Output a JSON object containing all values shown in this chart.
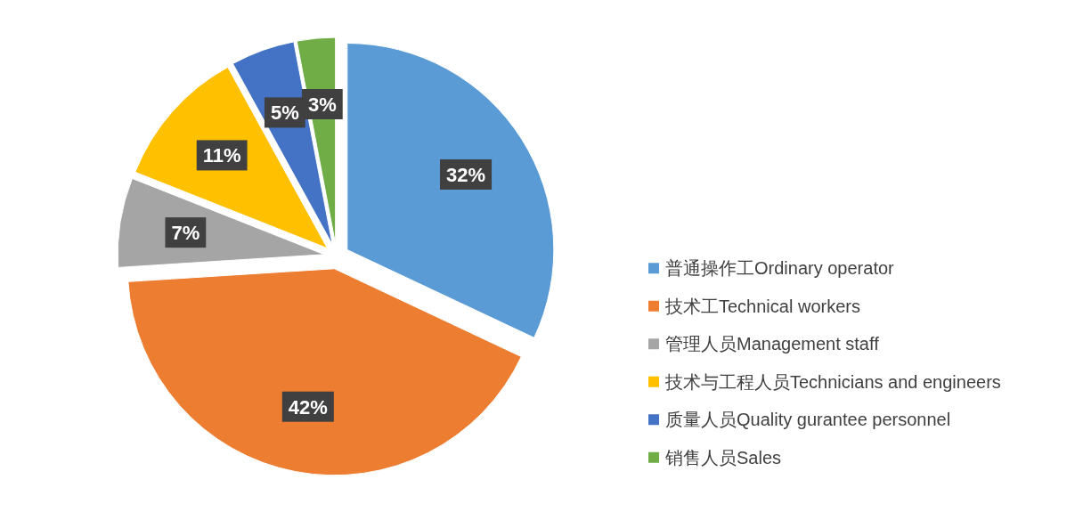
{
  "chart_data": {
    "type": "pie",
    "categories": [
      "普通操作工Ordinary operator",
      "技术工Technical workers",
      "管理人员Management staff",
      "技术与工程人员Technicians and engineers",
      "质量人员Quality gurantee personnel",
      "销售人员Sales"
    ],
    "values": [
      32,
      42,
      7,
      11,
      5,
      3
    ],
    "colors": [
      "#5b9bd5",
      "#ed7d31",
      "#a5a5a5",
      "#ffc000",
      "#4472c4",
      "#70ad47"
    ],
    "value_labels": [
      "32%",
      "42%",
      "7%",
      "11%",
      "5%",
      "3%"
    ],
    "legend": "bottom right"
  }
}
